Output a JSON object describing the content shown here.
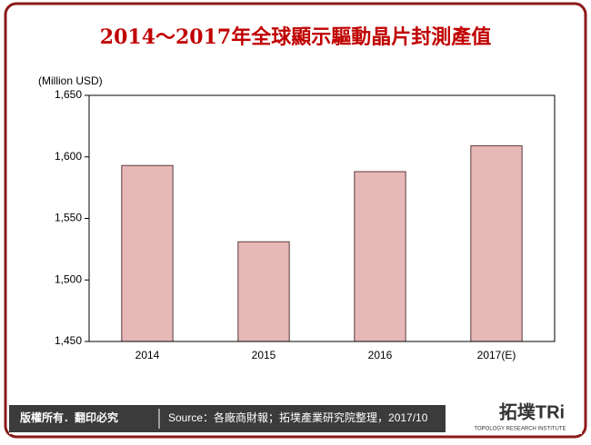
{
  "chart_data": {
    "type": "bar",
    "title": "2014～2017年全球顯示驅動晶片封測產值",
    "y_label": "(Million USD)",
    "categories": [
      "2014",
      "2015",
      "2016",
      "2017(E)"
    ],
    "values": [
      1593,
      1531,
      1588,
      1609
    ],
    "color": "#e6b8b7",
    "ylim": [
      1450,
      1650
    ],
    "yticks": [
      {
        "value": 1450,
        "label": "1,450"
      },
      {
        "value": 1500,
        "label": "1,500"
      },
      {
        "value": 1550,
        "label": "1,550"
      },
      {
        "value": 1600,
        "label": "1,600"
      },
      {
        "value": 1650,
        "label": "1,650"
      }
    ],
    "grid": false
  },
  "footer": {
    "copyright": "版權所有．翻印必究",
    "source": "Source：各廠商財報；拓墣產業研究院整理，2017/10",
    "logo": "拓墣TRi",
    "logo_subtitle": "TOPOLOGY RESEARCH INSTITUTE"
  }
}
